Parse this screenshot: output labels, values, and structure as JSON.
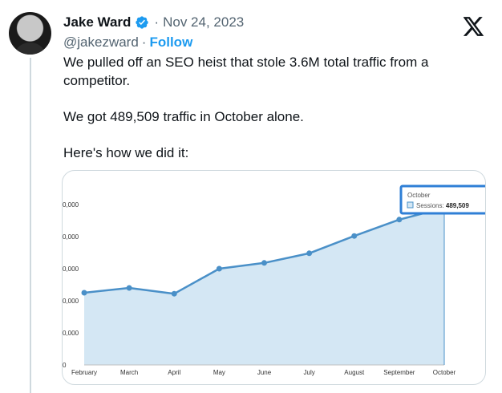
{
  "author": {
    "display_name": "Jake Ward",
    "separator": "·",
    "date": "Nov 24, 2023",
    "handle": "@jakezward",
    "follow_separator": "·",
    "follow_label": "Follow",
    "verified_icon": "verified-badge-icon",
    "avatar_icon": "profile-photo"
  },
  "platform_icon": "x-logo-icon",
  "tweet": {
    "line1": "We pulled off an SEO heist that stole 3.6M total traffic from a competitor.",
    "line2": "We got 489,509 traffic in October alone.",
    "line3": "Here's how we did it:"
  },
  "colors": {
    "accent": "#1d9bf0",
    "verified": "#1d9bf0",
    "text": "#0f1419",
    "muted": "#536471",
    "area_fill": "#d4e7f4",
    "line": "#4a90c8",
    "tooltip_border": "#2f7fd6"
  },
  "chart_data": {
    "type": "area",
    "title": "",
    "xlabel": "",
    "ylabel": "",
    "categories": [
      "February",
      "March",
      "April",
      "May",
      "June",
      "July",
      "August",
      "September",
      "October"
    ],
    "y_ticks": [
      "0",
      "0,000",
      "0,000",
      "0,000",
      "0,000",
      "0,000"
    ],
    "ylim": [
      0,
      500000
    ],
    "grid": false,
    "series": [
      {
        "name": "Sessions",
        "values": [
          225000,
          240000,
          222000,
          300000,
          318000,
          348000,
          402000,
          453000,
          489509
        ]
      }
    ],
    "tooltip": {
      "title": "October",
      "label": "Sessions:",
      "value": "489,509"
    }
  }
}
